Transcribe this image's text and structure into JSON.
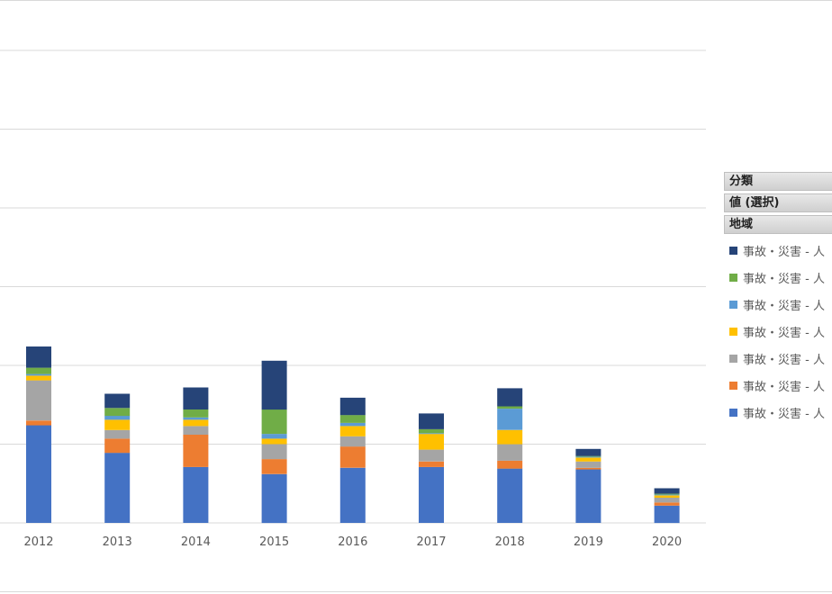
{
  "chart_data": {
    "type": "bar",
    "stacked": true,
    "categories": [
      "2012",
      "2013",
      "2014",
      "2015",
      "2016",
      "2017",
      "2018",
      "2019",
      "2020"
    ],
    "ylim": [
      0,
      6
    ],
    "gridlines": true,
    "legend_position": "right",
    "series": [
      {
        "name": "事故・災害 - 人",
        "color": "#4472C4",
        "values": [
          1.24,
          0.89,
          0.71,
          0.62,
          0.7,
          0.71,
          0.69,
          0.68,
          0.22
        ]
      },
      {
        "name": "事故・災害 - 人",
        "color": "#ED7D31",
        "values": [
          0.06,
          0.18,
          0.41,
          0.19,
          0.27,
          0.07,
          0.1,
          0.02,
          0.04
        ]
      },
      {
        "name": "事故・災害 - 人",
        "color": "#A5A5A5",
        "values": [
          0.51,
          0.11,
          0.11,
          0.19,
          0.13,
          0.15,
          0.21,
          0.08,
          0.06
        ]
      },
      {
        "name": "事故・災害 - 人",
        "color": "#FFC000",
        "values": [
          0.06,
          0.13,
          0.08,
          0.07,
          0.13,
          0.2,
          0.18,
          0.05,
          0.03
        ]
      },
      {
        "name": "事故・災害 - 人",
        "color": "#5B9BD5",
        "values": [
          0.02,
          0.05,
          0.03,
          0.06,
          0.04,
          0.01,
          0.27,
          0.01,
          0.01
        ]
      },
      {
        "name": "事故・災害 - 人",
        "color": "#70AD47",
        "values": [
          0.08,
          0.1,
          0.1,
          0.31,
          0.1,
          0.05,
          0.03,
          0.01,
          0.01
        ]
      },
      {
        "name": "事故・災害 - 人",
        "color": "#264478",
        "values": [
          0.27,
          0.18,
          0.28,
          0.62,
          0.22,
          0.2,
          0.23,
          0.09,
          0.07
        ]
      }
    ]
  },
  "pivot": {
    "category_label": "分類",
    "values_label": "値 (選択)",
    "region_label": "地域"
  },
  "legend_order": [
    6,
    5,
    4,
    3,
    2,
    1,
    0
  ]
}
